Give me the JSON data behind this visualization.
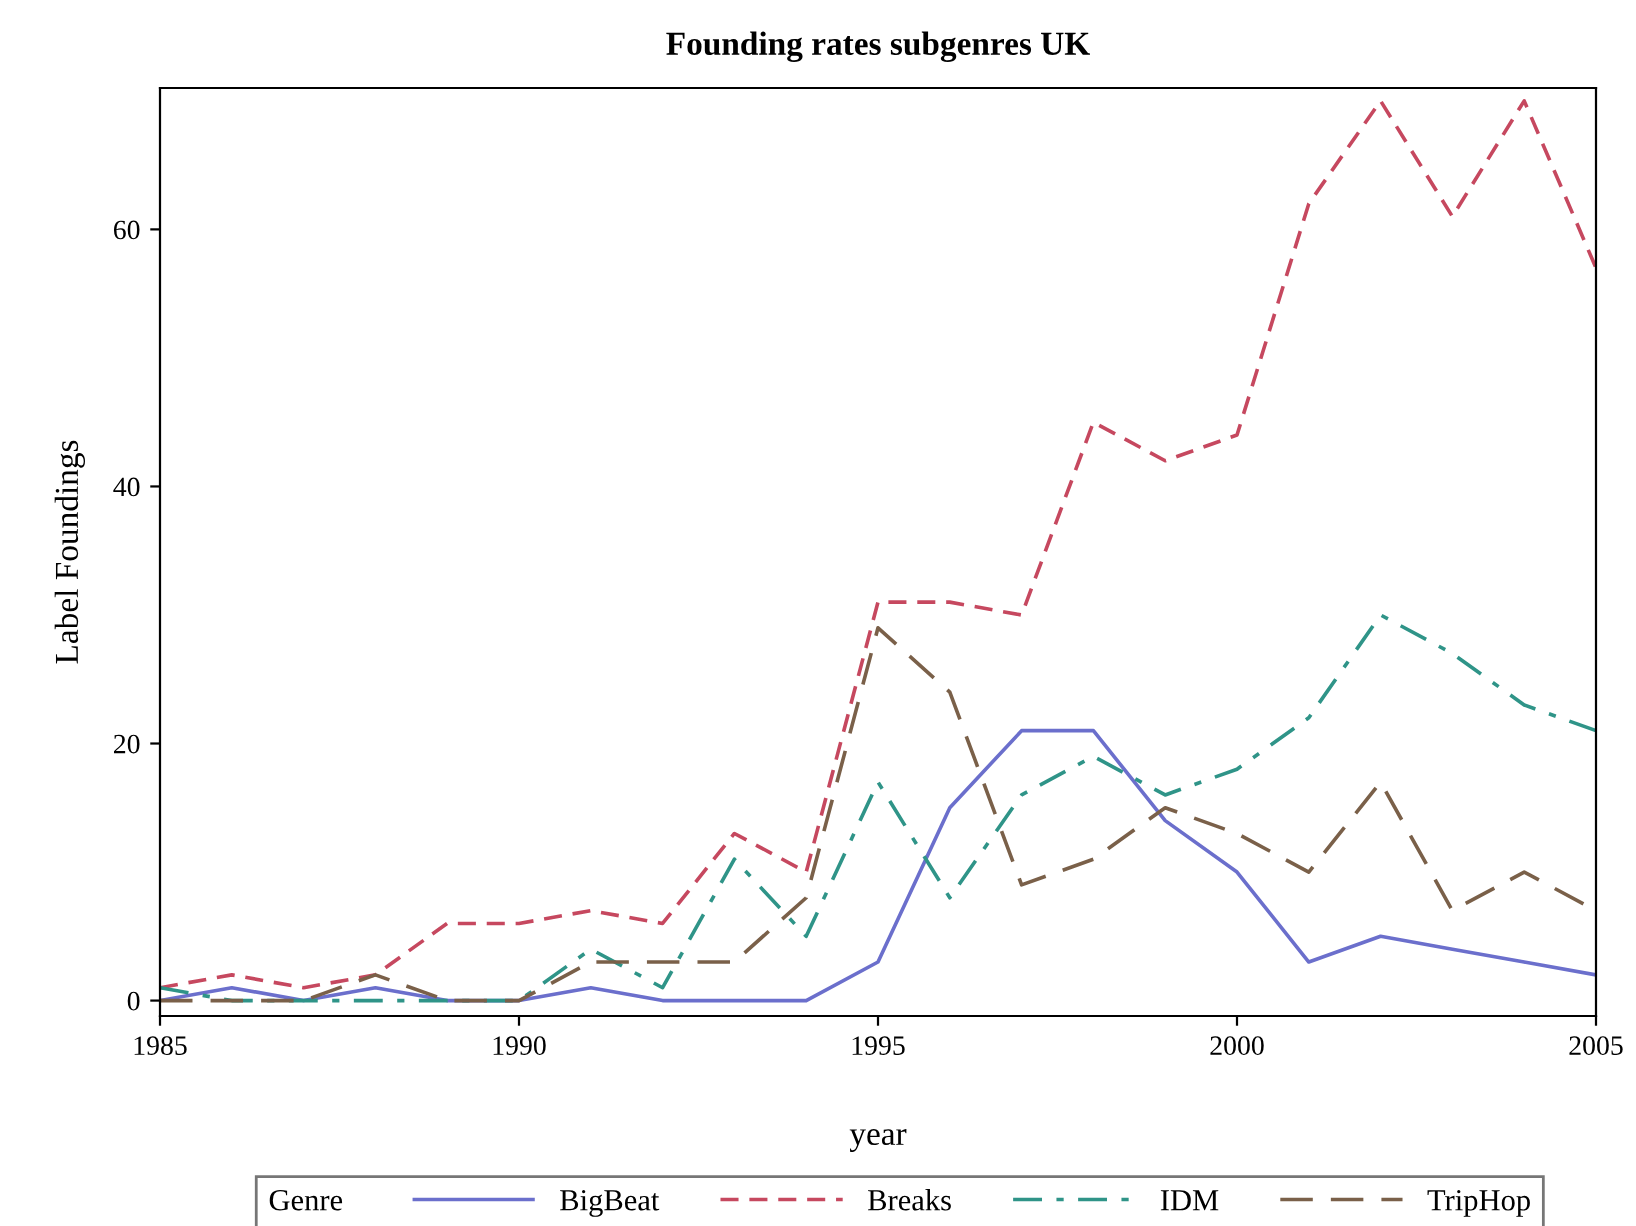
{
  "chart_data": {
    "type": "line",
    "title": "Founding rates subgenres UK",
    "xlabel": "year",
    "ylabel": "Label Foundings",
    "legend_title": "Genre",
    "legend": "bottom",
    "grid": false,
    "marker": "none",
    "x": [
      1985,
      1986,
      1987,
      1988,
      1989,
      1990,
      1991,
      1992,
      1993,
      1994,
      1995,
      1996,
      1997,
      1998,
      1999,
      2000,
      2001,
      2002,
      2003,
      2004,
      2005
    ],
    "series": [
      {
        "name": "BigBeat",
        "color": "#6b6fcc",
        "line_style": "solid",
        "values": [
          0,
          1,
          0,
          1,
          0,
          0,
          1,
          0,
          0,
          0,
          3,
          15,
          21,
          21,
          14,
          10,
          3,
          5,
          4,
          3,
          2
        ]
      },
      {
        "name": "Breaks",
        "color": "#c6485f",
        "line_style": "dashed",
        "values": [
          1,
          2,
          1,
          2,
          6,
          6,
          7,
          6,
          13,
          10,
          31,
          31,
          30,
          45,
          42,
          44,
          62,
          70,
          61,
          70,
          57
        ]
      },
      {
        "name": "IDM",
        "color": "#2f9488",
        "line_style": "dashdot",
        "values": [
          1,
          0,
          0,
          0,
          0,
          0,
          4,
          1,
          11,
          5,
          17,
          8,
          16,
          19,
          16,
          18,
          22,
          30,
          27,
          23,
          21
        ]
      },
      {
        "name": "TripHop",
        "color": "#7a6049",
        "line_style": "longdash",
        "values": [
          0,
          0,
          0,
          2,
          0,
          0,
          3,
          3,
          3,
          8,
          29,
          24,
          9,
          11,
          15,
          13,
          10,
          17,
          7,
          10,
          7
        ]
      }
    ],
    "xlim": [
      1985,
      2005
    ],
    "ylim": [
      -1.2,
      71
    ],
    "xticks": [
      1985,
      1990,
      1995,
      2000,
      2005
    ],
    "yticks": [
      0,
      20,
      40,
      60
    ]
  }
}
